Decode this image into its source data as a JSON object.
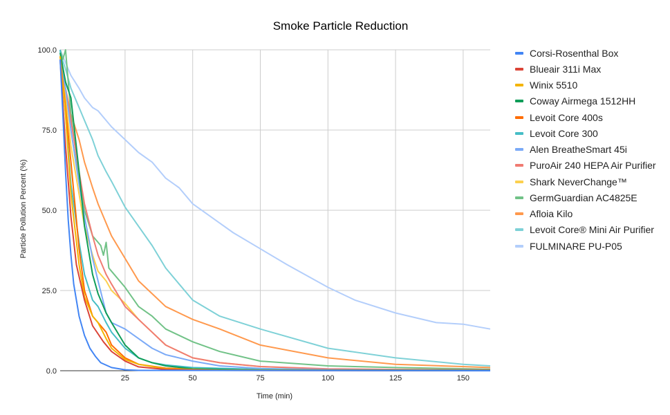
{
  "chart_data": {
    "type": "line",
    "title": "Smoke Particle Reduction",
    "xlabel": "Time (min)",
    "ylabel": "Particle Pollution Percent (%)",
    "xlim": [
      1,
      160
    ],
    "ylim": [
      0,
      100
    ],
    "x_ticks": [
      25,
      50,
      75,
      100,
      125,
      150
    ],
    "y_ticks": [
      "0.0",
      "25.0",
      "50.0",
      "75.0",
      "100.0"
    ],
    "grid": true,
    "legend_position": "right",
    "series": [
      {
        "name": "Corsi-Rosenthal Box",
        "color": "#4285F4",
        "points": [
          [
            1,
            97
          ],
          [
            2,
            80
          ],
          [
            3,
            62
          ],
          [
            4,
            47
          ],
          [
            5,
            36
          ],
          [
            6,
            27
          ],
          [
            7,
            22
          ],
          [
            8,
            17
          ],
          [
            10,
            11
          ],
          [
            12,
            7
          ],
          [
            14,
            4.5
          ],
          [
            16,
            2.5
          ],
          [
            20,
            1
          ],
          [
            25,
            0.3
          ],
          [
            30,
            0.1
          ],
          [
            160,
            0
          ]
        ]
      },
      {
        "name": "Blueair 311i Max",
        "color": "#DB4437",
        "points": [
          [
            1,
            97
          ],
          [
            3,
            70
          ],
          [
            5,
            48
          ],
          [
            7,
            33
          ],
          [
            10,
            22
          ],
          [
            13,
            14
          ],
          [
            17,
            9
          ],
          [
            20,
            6
          ],
          [
            25,
            3
          ],
          [
            30,
            1.2
          ],
          [
            40,
            0.4
          ],
          [
            60,
            0.1
          ],
          [
            160,
            0
          ]
        ]
      },
      {
        "name": "Winix 5510",
        "color": "#F4B400",
        "points": [
          [
            1,
            98
          ],
          [
            3,
            80
          ],
          [
            5,
            55
          ],
          [
            8,
            33
          ],
          [
            10,
            23
          ],
          [
            13,
            17
          ],
          [
            15,
            15
          ],
          [
            18,
            10
          ],
          [
            20,
            7
          ],
          [
            25,
            3.5
          ],
          [
            30,
            2
          ],
          [
            40,
            0.6
          ],
          [
            60,
            0.2
          ],
          [
            160,
            0
          ]
        ]
      },
      {
        "name": "Coway Airmega 1512HH",
        "color": "#0F9D58",
        "points": [
          [
            1,
            99
          ],
          [
            3,
            90
          ],
          [
            5,
            85
          ],
          [
            8,
            62
          ],
          [
            10,
            45
          ],
          [
            13,
            30
          ],
          [
            15,
            24
          ],
          [
            18,
            18
          ],
          [
            20,
            15
          ],
          [
            25,
            8
          ],
          [
            30,
            4
          ],
          [
            35,
            2.5
          ],
          [
            40,
            1.5
          ],
          [
            50,
            0.6
          ],
          [
            75,
            0.2
          ],
          [
            160,
            0.1
          ]
        ]
      },
      {
        "name": "Levoit Core 400s",
        "color": "#FF6D01",
        "points": [
          [
            1,
            98
          ],
          [
            3,
            82
          ],
          [
            5,
            65
          ],
          [
            8,
            38
          ],
          [
            10,
            25
          ],
          [
            13,
            17
          ],
          [
            15,
            15
          ],
          [
            18,
            12
          ],
          [
            20,
            8
          ],
          [
            25,
            4
          ],
          [
            30,
            2
          ],
          [
            40,
            0.8
          ],
          [
            60,
            0.3
          ],
          [
            100,
            0.1
          ],
          [
            160,
            0
          ]
        ]
      },
      {
        "name": "Levoit Core 300",
        "color": "#46BDC6",
        "points": [
          [
            1,
            100
          ],
          [
            3,
            80
          ],
          [
            5,
            58
          ],
          [
            8,
            40
          ],
          [
            10,
            30
          ],
          [
            13,
            22
          ],
          [
            15,
            20
          ],
          [
            18,
            15
          ],
          [
            20,
            12
          ],
          [
            25,
            7
          ],
          [
            30,
            4
          ],
          [
            35,
            2.5
          ],
          [
            40,
            1.8
          ],
          [
            50,
            1
          ],
          [
            75,
            0.4
          ],
          [
            100,
            0.2
          ],
          [
            160,
            0.1
          ]
        ]
      },
      {
        "name": "Alen BreatheSmart 45i",
        "color": "#7BAAF7",
        "points": [
          [
            1,
            98
          ],
          [
            3,
            88
          ],
          [
            5,
            75
          ],
          [
            8,
            58
          ],
          [
            10,
            48
          ],
          [
            13,
            35
          ],
          [
            15,
            28
          ],
          [
            18,
            18
          ],
          [
            20,
            15
          ],
          [
            25,
            13
          ],
          [
            30,
            10
          ],
          [
            35,
            7
          ],
          [
            40,
            5
          ],
          [
            50,
            3
          ],
          [
            60,
            1.5
          ],
          [
            75,
            0.7
          ],
          [
            100,
            0.3
          ],
          [
            160,
            0.1
          ]
        ]
      },
      {
        "name": "PuroAir 240 HEPA Air Purifier",
        "color": "#F07B72",
        "points": [
          [
            1,
            97
          ],
          [
            3,
            88
          ],
          [
            5,
            78
          ],
          [
            8,
            62
          ],
          [
            10,
            52
          ],
          [
            13,
            42
          ],
          [
            15,
            36
          ],
          [
            18,
            30
          ],
          [
            20,
            27
          ],
          [
            25,
            20
          ],
          [
            30,
            16
          ],
          [
            35,
            12
          ],
          [
            40,
            8
          ],
          [
            50,
            4
          ],
          [
            60,
            2.5
          ],
          [
            75,
            1.3
          ],
          [
            100,
            0.6
          ],
          [
            125,
            0.4
          ],
          [
            160,
            0.3
          ]
        ]
      },
      {
        "name": "Shark NeverChange™",
        "color": "#FCD04F",
        "points": [
          [
            1,
            98
          ],
          [
            3,
            85
          ],
          [
            5,
            70
          ],
          [
            8,
            55
          ],
          [
            10,
            45
          ],
          [
            13,
            36
          ],
          [
            15,
            31
          ],
          [
            18,
            28
          ],
          [
            20,
            25
          ],
          [
            25,
            21
          ],
          [
            30,
            16
          ],
          [
            35,
            12
          ],
          [
            40,
            8
          ],
          [
            50,
            4
          ],
          [
            60,
            2.5
          ],
          [
            75,
            1.3
          ],
          [
            100,
            0.5
          ],
          [
            160,
            0.2
          ]
        ]
      },
      {
        "name": "GermGuardian AC4825E",
        "color": "#71C287",
        "points": [
          [
            1,
            100
          ],
          [
            2,
            97
          ],
          [
            3,
            100
          ],
          [
            5,
            80
          ],
          [
            8,
            60
          ],
          [
            10,
            50
          ],
          [
            13,
            42
          ],
          [
            15,
            40
          ],
          [
            16,
            39
          ],
          [
            17,
            36
          ],
          [
            18,
            40
          ],
          [
            19,
            32
          ],
          [
            20,
            31
          ],
          [
            25,
            26
          ],
          [
            30,
            20
          ],
          [
            35,
            17
          ],
          [
            40,
            13
          ],
          [
            50,
            9
          ],
          [
            60,
            6
          ],
          [
            75,
            3
          ],
          [
            100,
            1.5
          ],
          [
            125,
            1
          ],
          [
            160,
            0.5
          ]
        ]
      },
      {
        "name": "Afloia Kilo",
        "color": "#FF994D",
        "points": [
          [
            1,
            97
          ],
          [
            3,
            88
          ],
          [
            5,
            80
          ],
          [
            8,
            72
          ],
          [
            10,
            65
          ],
          [
            13,
            57
          ],
          [
            15,
            52
          ],
          [
            18,
            46
          ],
          [
            20,
            42
          ],
          [
            25,
            35
          ],
          [
            30,
            28
          ],
          [
            35,
            24
          ],
          [
            40,
            20
          ],
          [
            50,
            16
          ],
          [
            60,
            13
          ],
          [
            75,
            8
          ],
          [
            100,
            4
          ],
          [
            125,
            2
          ],
          [
            160,
            1
          ]
        ]
      },
      {
        "name": "Levoit Core® Mini Air Purifier",
        "color": "#7ED1D7",
        "points": [
          [
            1,
            99
          ],
          [
            3,
            94
          ],
          [
            5,
            88
          ],
          [
            8,
            82
          ],
          [
            10,
            78
          ],
          [
            13,
            72
          ],
          [
            15,
            67
          ],
          [
            18,
            62
          ],
          [
            20,
            59
          ],
          [
            25,
            51
          ],
          [
            30,
            45
          ],
          [
            35,
            39
          ],
          [
            40,
            32
          ],
          [
            45,
            27
          ],
          [
            50,
            22
          ],
          [
            60,
            17
          ],
          [
            75,
            13
          ],
          [
            100,
            7
          ],
          [
            125,
            4
          ],
          [
            150,
            2
          ],
          [
            160,
            1.5
          ]
        ]
      },
      {
        "name": "FULMINARE PU-P05",
        "color": "#B3CEFB",
        "points": [
          [
            1,
            100
          ],
          [
            3,
            96
          ],
          [
            5,
            92
          ],
          [
            8,
            88
          ],
          [
            10,
            85
          ],
          [
            13,
            82
          ],
          [
            15,
            81
          ],
          [
            18,
            78
          ],
          [
            20,
            76
          ],
          [
            25,
            72
          ],
          [
            30,
            68
          ],
          [
            35,
            65
          ],
          [
            40,
            60
          ],
          [
            45,
            57
          ],
          [
            50,
            52
          ],
          [
            55,
            49
          ],
          [
            60,
            46
          ],
          [
            65,
            43
          ],
          [
            75,
            38
          ],
          [
            85,
            33
          ],
          [
            100,
            26
          ],
          [
            110,
            22
          ],
          [
            125,
            18
          ],
          [
            140,
            15
          ],
          [
            150,
            14.5
          ],
          [
            160,
            13
          ]
        ]
      }
    ]
  }
}
